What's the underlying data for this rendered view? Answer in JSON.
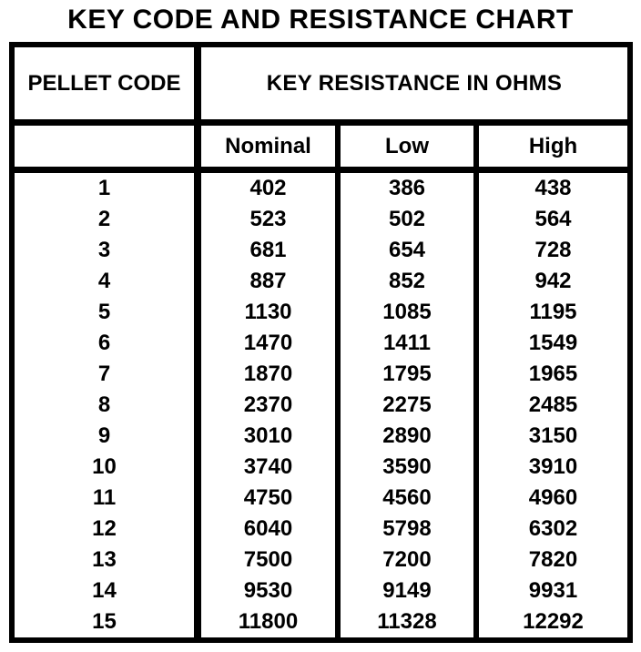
{
  "page_title": "KEY CODE AND RESISTANCE CHART",
  "table": {
    "col1_header": "PELLET CODE",
    "group_header": "KEY RESISTANCE IN OHMS",
    "sub_headers": [
      "Nominal",
      "Low",
      "High"
    ],
    "border_color": "#000000",
    "text_color": "#000000",
    "background": "#ffffff"
  },
  "chart_data": {
    "type": "table",
    "title": "KEY CODE AND RESISTANCE CHART",
    "columns": [
      "PELLET CODE",
      "Nominal",
      "Low",
      "High"
    ],
    "column_groups": [
      {
        "label": "KEY RESISTANCE IN OHMS",
        "spans": [
          "Nominal",
          "Low",
          "High"
        ]
      }
    ],
    "rows": [
      [
        1,
        402,
        386,
        438
      ],
      [
        2,
        523,
        502,
        564
      ],
      [
        3,
        681,
        654,
        728
      ],
      [
        4,
        887,
        852,
        942
      ],
      [
        5,
        1130,
        1085,
        1195
      ],
      [
        6,
        1470,
        1411,
        1549
      ],
      [
        7,
        1870,
        1795,
        1965
      ],
      [
        8,
        2370,
        2275,
        2485
      ],
      [
        9,
        3010,
        2890,
        3150
      ],
      [
        10,
        3740,
        3590,
        3910
      ],
      [
        11,
        4750,
        4560,
        4960
      ],
      [
        12,
        6040,
        5798,
        6302
      ],
      [
        13,
        7500,
        7200,
        7820
      ],
      [
        14,
        9530,
        9149,
        9931
      ],
      [
        15,
        11800,
        11328,
        12292
      ]
    ]
  }
}
